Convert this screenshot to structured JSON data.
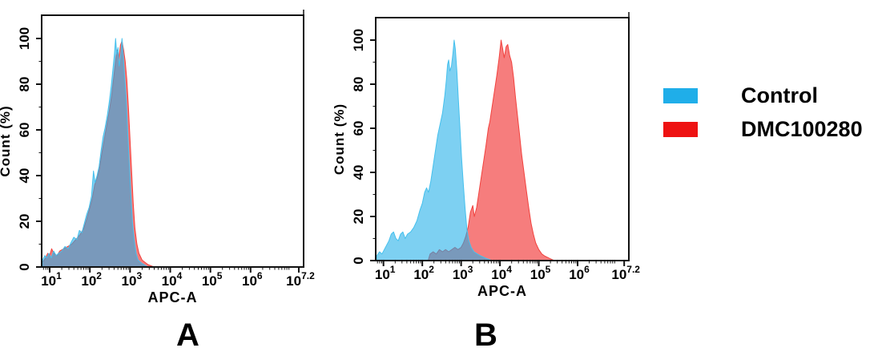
{
  "legend": {
    "items": [
      {
        "label": "Control",
        "color": "#1FAEE9"
      },
      {
        "label": "DMC100280",
        "color": "#EE1212"
      }
    ]
  },
  "chart_data": [
    {
      "panel_label": "A",
      "type": "area",
      "title": "",
      "xlabel": "APC-A",
      "ylabel": "Count (%)",
      "x_scale": "log10",
      "x_log_range": [
        0.8,
        7.32
      ],
      "ylim": [
        0,
        110
      ],
      "x_ticks": [
        {
          "base": "10",
          "exp": "1",
          "log": 1
        },
        {
          "base": "10",
          "exp": "2",
          "log": 2
        },
        {
          "base": "10",
          "exp": "3",
          "log": 3
        },
        {
          "base": "10",
          "exp": "4",
          "log": 4
        },
        {
          "base": "10",
          "exp": "5",
          "log": 5
        },
        {
          "base": "10",
          "exp": "6",
          "log": 6
        },
        {
          "base": "10",
          "exp": "7.2",
          "log": 7.2
        }
      ],
      "y_ticks": [
        0,
        20,
        40,
        60,
        80,
        100
      ],
      "y_minor_step": 10,
      "grid": false,
      "series": [
        {
          "name": "DMC100280",
          "fill": "#EE1212",
          "fill_opacity": 0.55,
          "stroke": "#F2423E",
          "points": [
            [
              0.82,
              2
            ],
            [
              0.9,
              4
            ],
            [
              0.95,
              6
            ],
            [
              1.0,
              5
            ],
            [
              1.05,
              8
            ],
            [
              1.1,
              6
            ],
            [
              1.18,
              5
            ],
            [
              1.25,
              7
            ],
            [
              1.35,
              8
            ],
            [
              1.45,
              9
            ],
            [
              1.55,
              10
            ],
            [
              1.65,
              12
            ],
            [
              1.75,
              14
            ],
            [
              1.85,
              17
            ],
            [
              1.92,
              21
            ],
            [
              2.0,
              26
            ],
            [
              2.06,
              30
            ],
            [
              2.12,
              36
            ],
            [
              2.18,
              39
            ],
            [
              2.24,
              43
            ],
            [
              2.3,
              50
            ],
            [
              2.36,
              56
            ],
            [
              2.42,
              62
            ],
            [
              2.48,
              68
            ],
            [
              2.54,
              75
            ],
            [
              2.6,
              84
            ],
            [
              2.65,
              92
            ],
            [
              2.68,
              95
            ],
            [
              2.72,
              91
            ],
            [
              2.76,
              97
            ],
            [
              2.8,
              99
            ],
            [
              2.84,
              95
            ],
            [
              2.88,
              90
            ],
            [
              2.92,
              82
            ],
            [
              2.96,
              70
            ],
            [
              3.0,
              56
            ],
            [
              3.04,
              42
            ],
            [
              3.08,
              28
            ],
            [
              3.12,
              17
            ],
            [
              3.17,
              10
            ],
            [
              3.22,
              6
            ],
            [
              3.3,
              3
            ],
            [
              3.45,
              1
            ],
            [
              3.6,
              0
            ]
          ]
        },
        {
          "name": "Control",
          "fill": "#1FAEE9",
          "fill_opacity": 0.58,
          "stroke": "#45C0ED",
          "points": [
            [
              0.82,
              3
            ],
            [
              0.88,
              5
            ],
            [
              0.93,
              4
            ],
            [
              0.98,
              6
            ],
            [
              1.04,
              4
            ],
            [
              1.1,
              7
            ],
            [
              1.16,
              5
            ],
            [
              1.22,
              6
            ],
            [
              1.3,
              7
            ],
            [
              1.38,
              9
            ],
            [
              1.46,
              8
            ],
            [
              1.54,
              11
            ],
            [
              1.6,
              13
            ],
            [
              1.68,
              12
            ],
            [
              1.74,
              16
            ],
            [
              1.8,
              15
            ],
            [
              1.86,
              19
            ],
            [
              1.92,
              23
            ],
            [
              1.98,
              26
            ],
            [
              2.04,
              31
            ],
            [
              2.09,
              42
            ],
            [
              2.13,
              37
            ],
            [
              2.18,
              40
            ],
            [
              2.23,
              44
            ],
            [
              2.28,
              51
            ],
            [
              2.33,
              57
            ],
            [
              2.38,
              61
            ],
            [
              2.43,
              66
            ],
            [
              2.48,
              72
            ],
            [
              2.53,
              79
            ],
            [
              2.57,
              86
            ],
            [
              2.61,
              93
            ],
            [
              2.64,
              100
            ],
            [
              2.67,
              93
            ],
            [
              2.7,
              96
            ],
            [
              2.73,
              88
            ],
            [
              2.77,
              93
            ],
            [
              2.8,
              100
            ],
            [
              2.83,
              93
            ],
            [
              2.86,
              85
            ],
            [
              2.9,
              75
            ],
            [
              2.94,
              60
            ],
            [
              2.98,
              46
            ],
            [
              3.02,
              32
            ],
            [
              3.06,
              20
            ],
            [
              3.1,
              12
            ],
            [
              3.15,
              6
            ],
            [
              3.2,
              3
            ],
            [
              3.3,
              1.5
            ],
            [
              3.45,
              0
            ]
          ]
        }
      ]
    },
    {
      "panel_label": "B",
      "type": "area",
      "title": "",
      "xlabel": "APC-A",
      "ylabel": "Count (%)",
      "x_scale": "log10",
      "x_log_range": [
        0.8,
        7.32
      ],
      "ylim": [
        0,
        110
      ],
      "x_ticks": [
        {
          "base": "10",
          "exp": "1",
          "log": 1
        },
        {
          "base": "10",
          "exp": "2",
          "log": 2
        },
        {
          "base": "10",
          "exp": "3",
          "log": 3
        },
        {
          "base": "10",
          "exp": "4",
          "log": 4
        },
        {
          "base": "10",
          "exp": "5",
          "log": 5
        },
        {
          "base": "10",
          "exp": "6",
          "log": 6
        },
        {
          "base": "10",
          "exp": "7.2",
          "log": 7.2
        }
      ],
      "y_ticks": [
        0,
        20,
        40,
        60,
        80,
        100
      ],
      "y_minor_step": 10,
      "grid": false,
      "series": [
        {
          "name": "DMC100280",
          "fill": "#EE1212",
          "fill_opacity": 0.55,
          "stroke": "#F2423E",
          "points": [
            [
              2.15,
              0
            ],
            [
              2.2,
              3
            ],
            [
              2.28,
              4
            ],
            [
              2.36,
              3
            ],
            [
              2.44,
              5
            ],
            [
              2.52,
              4
            ],
            [
              2.6,
              5
            ],
            [
              2.68,
              4
            ],
            [
              2.76,
              5
            ],
            [
              2.84,
              6
            ],
            [
              2.92,
              5
            ],
            [
              3.0,
              6
            ],
            [
              3.06,
              8
            ],
            [
              3.12,
              11
            ],
            [
              3.18,
              15
            ],
            [
              3.24,
              22
            ],
            [
              3.3,
              25
            ],
            [
              3.34,
              20
            ],
            [
              3.4,
              24
            ],
            [
              3.46,
              31
            ],
            [
              3.52,
              38
            ],
            [
              3.58,
              45
            ],
            [
              3.64,
              52
            ],
            [
              3.7,
              60
            ],
            [
              3.74,
              63
            ],
            [
              3.8,
              70
            ],
            [
              3.86,
              77
            ],
            [
              3.92,
              84
            ],
            [
              3.98,
              92
            ],
            [
              4.03,
              100
            ],
            [
              4.07,
              96
            ],
            [
              4.11,
              92
            ],
            [
              4.16,
              97
            ],
            [
              4.2,
              98
            ],
            [
              4.25,
              93
            ],
            [
              4.3,
              90
            ],
            [
              4.35,
              83
            ],
            [
              4.4,
              74
            ],
            [
              4.45,
              66
            ],
            [
              4.5,
              58
            ],
            [
              4.56,
              48
            ],
            [
              4.62,
              40
            ],
            [
              4.68,
              32
            ],
            [
              4.74,
              24
            ],
            [
              4.8,
              17
            ],
            [
              4.86,
              12
            ],
            [
              4.92,
              8
            ],
            [
              5.0,
              5
            ],
            [
              5.08,
              3
            ],
            [
              5.16,
              2
            ],
            [
              5.28,
              1
            ],
            [
              5.4,
              0
            ]
          ]
        },
        {
          "name": "Control",
          "fill": "#1FAEE9",
          "fill_opacity": 0.58,
          "stroke": "#45C0ED",
          "points": [
            [
              0.82,
              2
            ],
            [
              0.9,
              4
            ],
            [
              0.96,
              3
            ],
            [
              1.02,
              5
            ],
            [
              1.08,
              7
            ],
            [
              1.14,
              9
            ],
            [
              1.2,
              12
            ],
            [
              1.26,
              13
            ],
            [
              1.32,
              10
            ],
            [
              1.38,
              9
            ],
            [
              1.44,
              12
            ],
            [
              1.5,
              13
            ],
            [
              1.56,
              10
            ],
            [
              1.62,
              12
            ],
            [
              1.7,
              13
            ],
            [
              1.78,
              15
            ],
            [
              1.86,
              18
            ],
            [
              1.94,
              23
            ],
            [
              2.0,
              26
            ],
            [
              2.06,
              31
            ],
            [
              2.11,
              33
            ],
            [
              2.16,
              31
            ],
            [
              2.22,
              36
            ],
            [
              2.28,
              43
            ],
            [
              2.34,
              50
            ],
            [
              2.4,
              57
            ],
            [
              2.46,
              62
            ],
            [
              2.52,
              67
            ],
            [
              2.58,
              75
            ],
            [
              2.62,
              82
            ],
            [
              2.65,
              89
            ],
            [
              2.68,
              91
            ],
            [
              2.71,
              86
            ],
            [
              2.75,
              88
            ],
            [
              2.79,
              94
            ],
            [
              2.82,
              100
            ],
            [
              2.85,
              96
            ],
            [
              2.89,
              86
            ],
            [
              2.93,
              73
            ],
            [
              2.97,
              60
            ],
            [
              3.01,
              47
            ],
            [
              3.06,
              34
            ],
            [
              3.1,
              24
            ],
            [
              3.15,
              14
            ],
            [
              3.2,
              9
            ],
            [
              3.26,
              6
            ],
            [
              3.33,
              4
            ],
            [
              3.42,
              3
            ],
            [
              3.52,
              2
            ],
            [
              3.65,
              1
            ],
            [
              3.8,
              0
            ]
          ]
        }
      ]
    }
  ]
}
